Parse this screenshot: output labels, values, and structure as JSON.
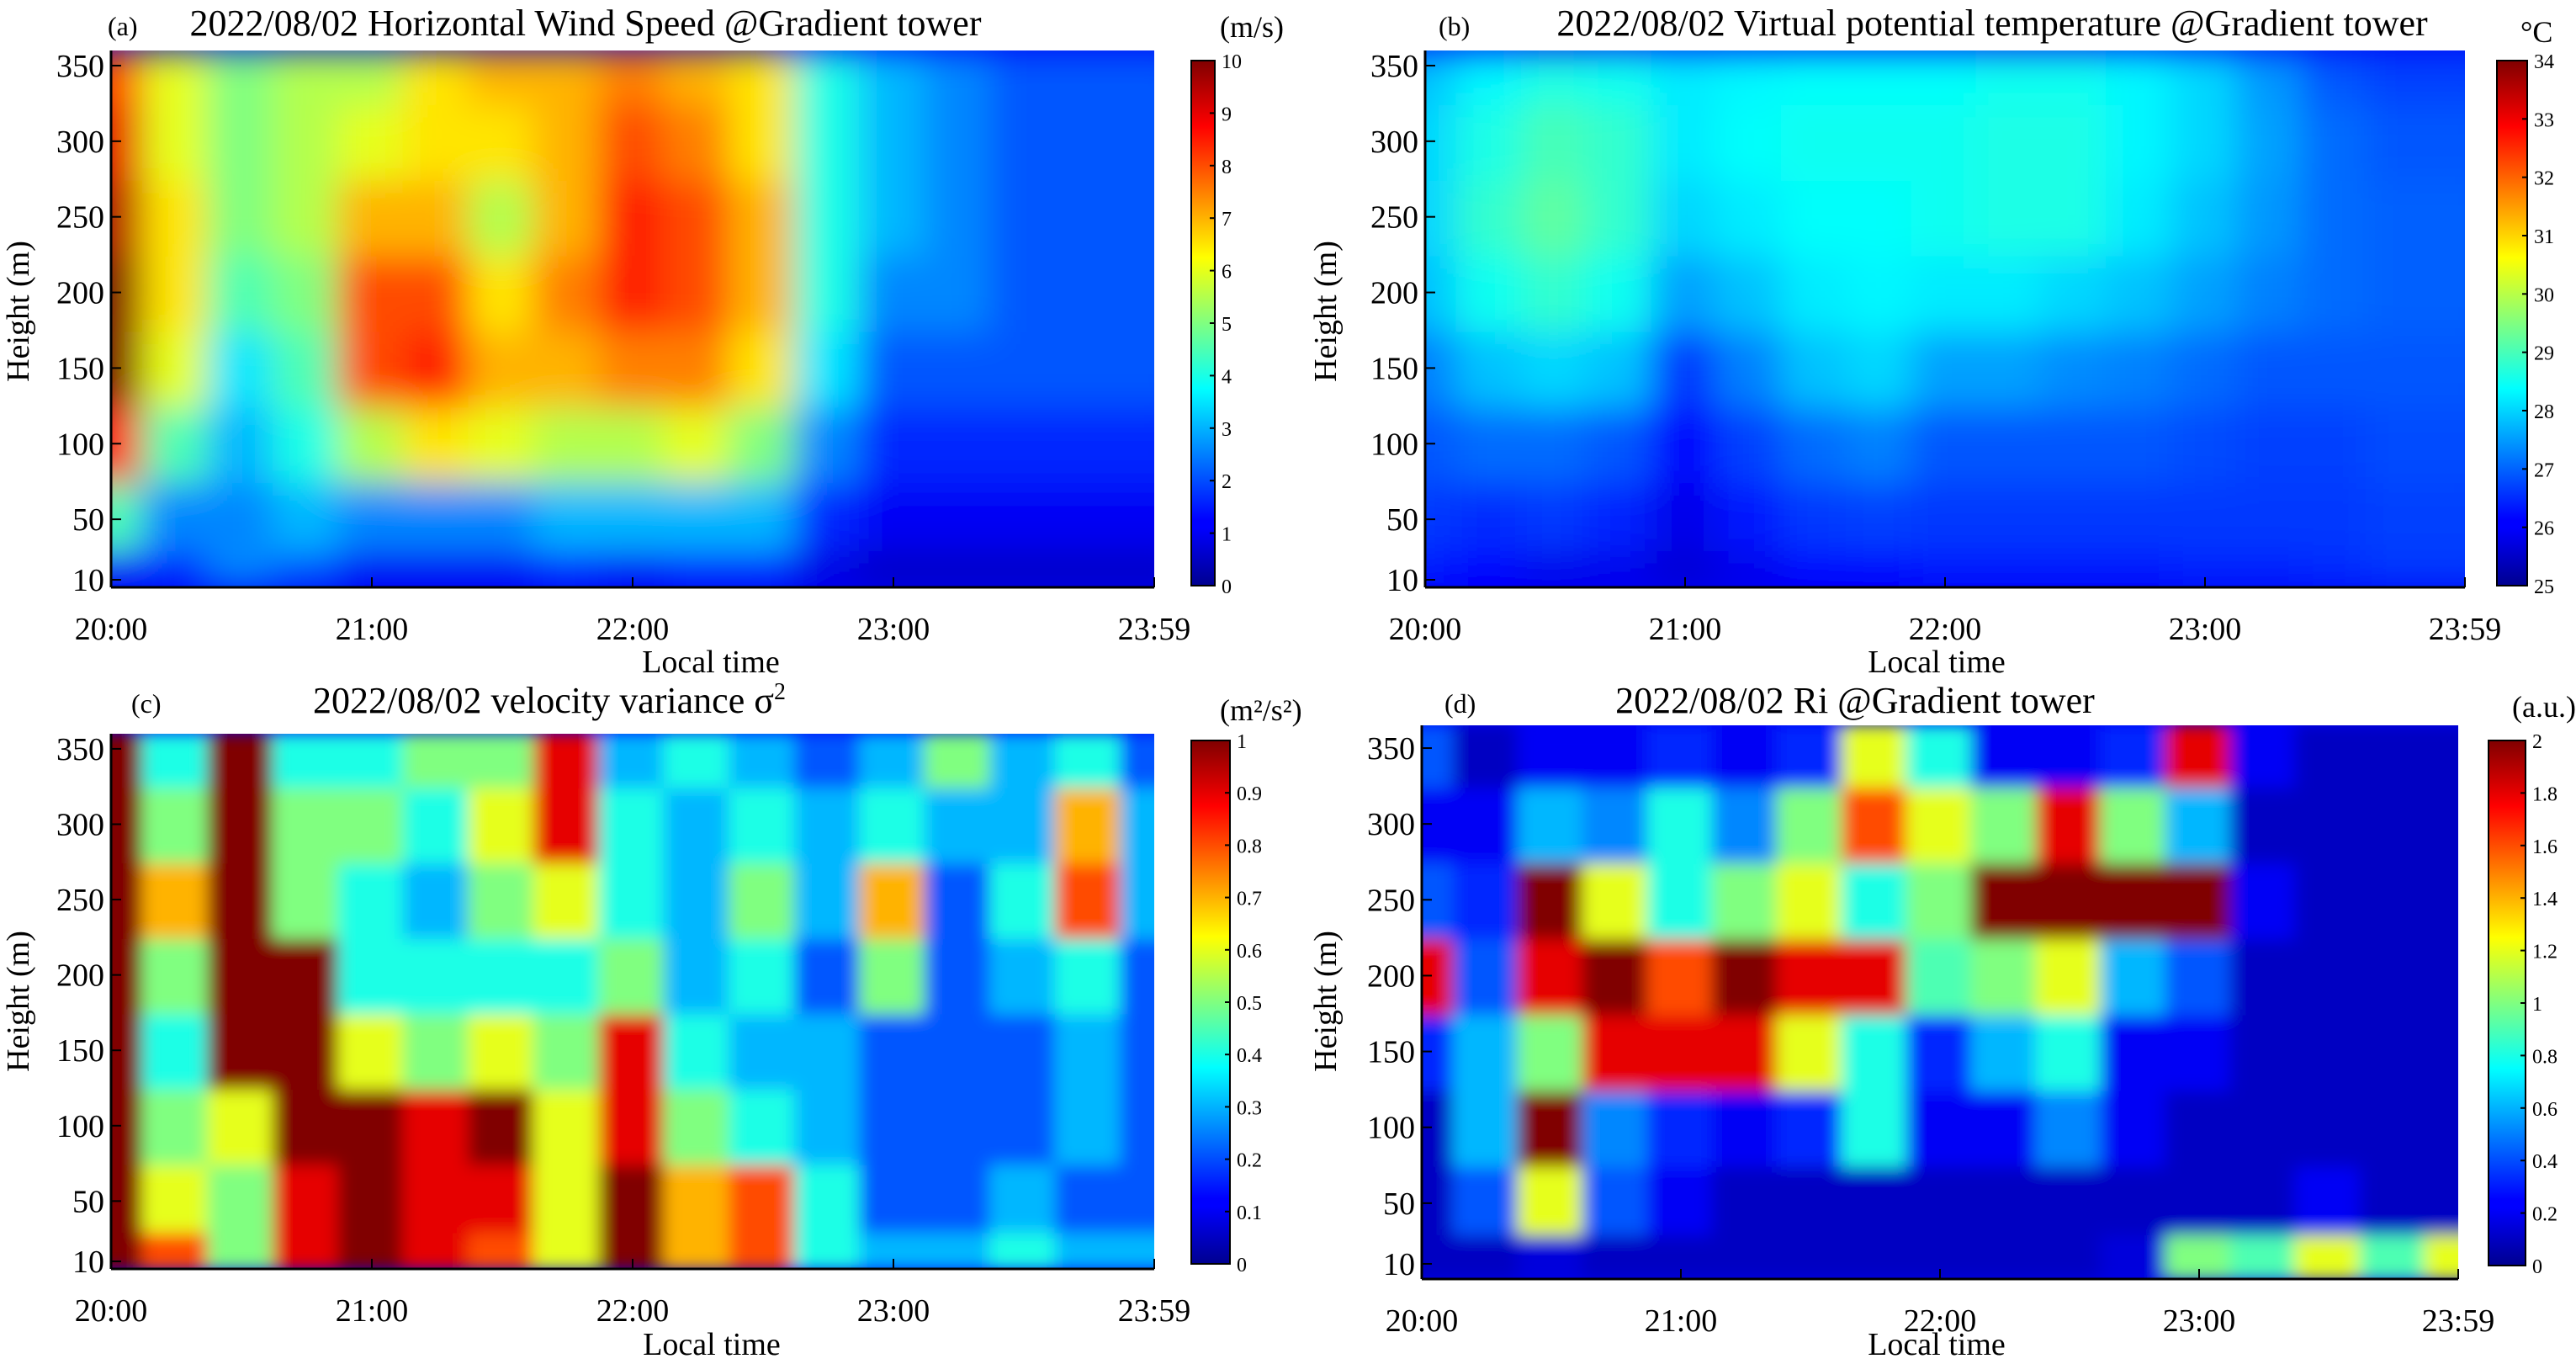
{
  "colormap": "jet",
  "colors": {
    "jet_low": "#00008f",
    "jet_mid": "#80ff80",
    "jet_high": "#800000",
    "axis": "#000000"
  },
  "chart_data": [
    {
      "type": "heatmap",
      "panel": "(a)",
      "title": "2022/08/02 Horizontal Wind Speed @Gradient tower",
      "xlabel": "Local time",
      "ylabel": "Height (m)",
      "xticks": [
        "20:00",
        "21:00",
        "22:00",
        "23:00",
        "23:59"
      ],
      "yticks": [
        "10",
        "50",
        "100",
        "150",
        "200",
        "250",
        "300",
        "350"
      ],
      "ytick_values": [
        10,
        50,
        100,
        150,
        200,
        250,
        300,
        350
      ],
      "ylim": [
        5,
        360
      ],
      "colorbar": {
        "label": "(m/s)",
        "min": 0,
        "max": 10,
        "ticks": [
          "0",
          "1",
          "2",
          "3",
          "4",
          "5",
          "6",
          "7",
          "8",
          "9",
          "10"
        ]
      },
      "heights": [
        10,
        50,
        100,
        150,
        200,
        250,
        300,
        350
      ],
      "times": [
        "20:00",
        "20:15",
        "20:30",
        "20:45",
        "21:00",
        "21:15",
        "21:30",
        "21:45",
        "22:00",
        "22:15",
        "22:30",
        "22:45",
        "23:00",
        "23:15",
        "23:30",
        "23:45",
        "23:59"
      ],
      "values": [
        [
          1.0,
          1.5,
          2.5,
          2.0,
          1.0,
          1.0,
          1.0,
          1.5,
          1.0,
          1.5,
          1.5,
          0.8,
          0.5,
          0.5,
          0.5,
          0.5,
          0.5
        ],
        [
          4.5,
          2.5,
          2.5,
          3.0,
          2.5,
          2.5,
          2.5,
          3.0,
          3.0,
          3.0,
          3.0,
          1.5,
          1.0,
          1.0,
          1.0,
          1.0,
          1.0
        ],
        [
          8.5,
          4.5,
          3.0,
          4.0,
          5.5,
          6.5,
          6.0,
          5.5,
          5.5,
          6.0,
          5.0,
          2.5,
          1.5,
          1.5,
          1.5,
          1.5,
          1.5
        ],
        [
          10.0,
          6.0,
          3.5,
          4.5,
          8.0,
          8.5,
          7.0,
          7.0,
          7.5,
          7.5,
          6.5,
          3.5,
          2.0,
          2.0,
          2.0,
          2.0,
          2.0
        ],
        [
          10.0,
          6.5,
          4.5,
          5.0,
          8.0,
          8.0,
          6.5,
          7.5,
          8.5,
          8.0,
          7.0,
          4.0,
          2.5,
          2.5,
          2.0,
          2.0,
          2.0
        ],
        [
          9.5,
          6.5,
          5.0,
          5.5,
          7.0,
          7.0,
          5.5,
          7.0,
          8.5,
          8.0,
          7.0,
          4.0,
          3.0,
          2.5,
          2.0,
          2.0,
          2.0
        ],
        [
          9.0,
          6.0,
          5.0,
          5.5,
          6.0,
          6.5,
          6.5,
          7.0,
          8.0,
          7.5,
          6.5,
          4.0,
          3.0,
          2.5,
          2.0,
          2.0,
          2.0
        ],
        [
          8.0,
          6.0,
          5.0,
          5.5,
          5.5,
          6.5,
          7.0,
          7.0,
          7.5,
          7.0,
          6.5,
          4.0,
          3.0,
          2.5,
          2.0,
          2.0,
          2.0
        ]
      ]
    },
    {
      "type": "heatmap",
      "panel": "(b)",
      "title": "2022/08/02 Virtual potential temperature @Gradient tower",
      "xlabel": "Local time",
      "ylabel": "Height (m)",
      "xticks": [
        "20:00",
        "21:00",
        "22:00",
        "23:00",
        "23:59"
      ],
      "yticks": [
        "10",
        "50",
        "100",
        "150",
        "200",
        "250",
        "300",
        "350"
      ],
      "ytick_values": [
        10,
        50,
        100,
        150,
        200,
        250,
        300,
        350
      ],
      "ylim": [
        5,
        360
      ],
      "colorbar": {
        "label": "°C",
        "min": 25,
        "max": 34,
        "ticks": [
          "25",
          "26",
          "27",
          "28",
          "29",
          "30",
          "31",
          "32",
          "33",
          "34"
        ]
      },
      "heights": [
        10,
        50,
        100,
        150,
        200,
        250,
        300,
        350
      ],
      "times": [
        "20:00",
        "20:15",
        "20:30",
        "20:45",
        "21:00",
        "21:15",
        "21:30",
        "21:45",
        "22:00",
        "22:15",
        "22:30",
        "22:45",
        "23:00",
        "23:15",
        "23:30",
        "23:45",
        "23:59"
      ],
      "values": [
        [
          26.2,
          26.0,
          25.8,
          25.8,
          25.6,
          25.8,
          26.0,
          26.0,
          26.2,
          26.2,
          26.2,
          26.2,
          26.3,
          26.3,
          26.4,
          26.5,
          26.5
        ],
        [
          26.5,
          26.4,
          26.5,
          26.3,
          25.8,
          26.2,
          26.5,
          26.6,
          26.5,
          26.5,
          26.5,
          26.5,
          26.5,
          26.5,
          26.5,
          26.6,
          26.6
        ],
        [
          26.8,
          27.0,
          27.0,
          26.8,
          26.0,
          26.6,
          27.0,
          27.2,
          26.8,
          26.8,
          26.8,
          26.8,
          26.7,
          26.6,
          26.6,
          26.7,
          26.7
        ],
        [
          27.2,
          27.8,
          28.0,
          27.8,
          26.5,
          27.2,
          27.8,
          28.0,
          27.5,
          27.5,
          27.3,
          27.2,
          27.0,
          26.8,
          26.8,
          26.8,
          26.8
        ],
        [
          27.8,
          28.5,
          28.8,
          28.5,
          27.5,
          27.8,
          28.2,
          28.3,
          28.2,
          28.2,
          28.0,
          27.8,
          27.5,
          27.2,
          27.0,
          26.9,
          26.9
        ],
        [
          28.0,
          28.8,
          29.2,
          28.8,
          28.0,
          28.2,
          28.4,
          28.4,
          28.5,
          28.6,
          28.6,
          28.2,
          27.8,
          27.4,
          27.0,
          26.9,
          26.9
        ],
        [
          28.0,
          28.6,
          29.0,
          28.8,
          28.2,
          28.4,
          28.5,
          28.5,
          28.5,
          28.6,
          28.6,
          28.3,
          28.0,
          27.5,
          27.0,
          26.8,
          26.8
        ],
        [
          27.8,
          28.3,
          28.6,
          28.5,
          28.2,
          28.3,
          28.4,
          28.4,
          28.4,
          28.5,
          28.5,
          28.3,
          28.0,
          27.4,
          26.8,
          26.6,
          26.6
        ]
      ]
    },
    {
      "type": "heatmap",
      "panel": "(c)",
      "title": "2022/08/02 velocity variance σ",
      "title_superscript": "2",
      "xlabel": "Local time",
      "ylabel": "Height (m)",
      "xticks": [
        "20:00",
        "21:00",
        "22:00",
        "23:00",
        "23:59"
      ],
      "yticks": [
        "10",
        "50",
        "100",
        "150",
        "200",
        "250",
        "300",
        "350"
      ],
      "ytick_values": [
        10,
        50,
        100,
        150,
        200,
        250,
        300,
        350
      ],
      "ylim": [
        5,
        360
      ],
      "colorbar": {
        "label": "(m²/s²)",
        "min": 0,
        "max": 1,
        "ticks": [
          "0",
          "0.1",
          "0.2",
          "0.3",
          "0.4",
          "0.5",
          "0.6",
          "0.7",
          "0.8",
          "0.9",
          "1"
        ]
      },
      "heights": [
        10,
        50,
        100,
        150,
        200,
        250,
        300,
        350
      ],
      "times": [
        "20:00",
        "20:15",
        "20:30",
        "20:45",
        "21:00",
        "21:15",
        "21:30",
        "21:45",
        "22:00",
        "22:15",
        "22:30",
        "22:45",
        "23:00",
        "23:15",
        "23:30",
        "23:45",
        "23:59"
      ],
      "values": [
        [
          1.0,
          0.8,
          0.5,
          0.9,
          1.0,
          0.9,
          0.8,
          0.6,
          1.0,
          0.7,
          0.8,
          0.4,
          0.3,
          0.3,
          0.4,
          0.3,
          0.3
        ],
        [
          1.0,
          0.6,
          0.5,
          0.9,
          1.0,
          0.9,
          0.9,
          0.6,
          1.0,
          0.7,
          0.8,
          0.4,
          0.2,
          0.2,
          0.3,
          0.2,
          0.2
        ],
        [
          1.0,
          0.5,
          0.6,
          1.0,
          1.0,
          0.9,
          1.0,
          0.6,
          0.9,
          0.5,
          0.4,
          0.3,
          0.2,
          0.2,
          0.2,
          0.3,
          0.2
        ],
        [
          1.0,
          0.4,
          1.0,
          1.0,
          0.6,
          0.5,
          0.6,
          0.5,
          0.9,
          0.4,
          0.3,
          0.3,
          0.2,
          0.2,
          0.2,
          0.3,
          0.2
        ],
        [
          1.0,
          0.5,
          1.0,
          1.0,
          0.4,
          0.4,
          0.4,
          0.4,
          0.5,
          0.3,
          0.4,
          0.2,
          0.5,
          0.2,
          0.3,
          0.4,
          0.2
        ],
        [
          1.0,
          0.7,
          1.0,
          0.5,
          0.4,
          0.3,
          0.5,
          0.6,
          0.4,
          0.3,
          0.5,
          0.3,
          0.7,
          0.2,
          0.4,
          0.8,
          0.3
        ],
        [
          1.0,
          0.5,
          1.0,
          0.5,
          0.5,
          0.4,
          0.6,
          0.9,
          0.4,
          0.3,
          0.4,
          0.3,
          0.4,
          0.3,
          0.3,
          0.7,
          0.3
        ],
        [
          1.0,
          0.4,
          1.0,
          0.4,
          0.4,
          0.5,
          0.5,
          0.9,
          0.3,
          0.4,
          0.3,
          0.2,
          0.3,
          0.5,
          0.3,
          0.4,
          0.2
        ]
      ]
    },
    {
      "type": "heatmap",
      "panel": "(d)",
      "title": "2022/08/02 Ri  @Gradient tower",
      "xlabel": "Local time",
      "ylabel": "Height (m)",
      "xticks": [
        "20:00",
        "21:00",
        "22:00",
        "23:00",
        "23:59"
      ],
      "yticks": [
        "10",
        "50",
        "100",
        "150",
        "200",
        "250",
        "300",
        "350"
      ],
      "ytick_values": [
        10,
        50,
        100,
        150,
        200,
        250,
        300,
        350
      ],
      "ylim": [
        0,
        365
      ],
      "colorbar": {
        "label": "(a.u.)",
        "min": 0,
        "max": 2,
        "ticks": [
          "0",
          "0.2",
          "0.4",
          "0.6",
          "0.8",
          "1",
          "1.2",
          "1.4",
          "1.6",
          "1.8",
          "2"
        ]
      },
      "heights": [
        10,
        50,
        100,
        150,
        200,
        250,
        300,
        350
      ],
      "times": [
        "20:00",
        "20:15",
        "20:30",
        "20:45",
        "21:00",
        "21:15",
        "21:30",
        "21:45",
        "22:00",
        "22:15",
        "22:30",
        "22:45",
        "23:00",
        "23:15",
        "23:30",
        "23:45",
        "23:59"
      ],
      "values": [
        [
          0.1,
          0.1,
          0.15,
          0.1,
          0.1,
          0.1,
          0.1,
          0.1,
          0.1,
          0.1,
          0.1,
          0.15,
          1.0,
          0.9,
          1.2,
          0.9,
          1.2
        ],
        [
          0.1,
          0.4,
          1.2,
          0.4,
          0.2,
          0.1,
          0.1,
          0.1,
          0.1,
          0.1,
          0.1,
          0.1,
          0.1,
          0.1,
          0.2,
          0.1,
          0.1
        ],
        [
          0.1,
          0.6,
          2.0,
          0.5,
          0.3,
          0.2,
          0.3,
          0.8,
          0.2,
          0.2,
          0.5,
          0.2,
          0.1,
          0.1,
          0.1,
          0.1,
          0.1
        ],
        [
          0.3,
          0.6,
          1.0,
          1.8,
          1.8,
          1.8,
          1.2,
          0.8,
          0.3,
          0.6,
          0.8,
          0.2,
          0.2,
          0.1,
          0.1,
          0.1,
          0.1
        ],
        [
          1.8,
          0.4,
          1.8,
          2.0,
          1.6,
          2.0,
          1.8,
          1.8,
          0.9,
          1.0,
          1.2,
          0.6,
          0.4,
          0.1,
          0.1,
          0.1,
          0.1
        ],
        [
          0.4,
          0.3,
          2.0,
          1.2,
          0.8,
          1.0,
          1.2,
          0.8,
          1.0,
          2.0,
          2.0,
          2.0,
          2.0,
          0.2,
          0.1,
          0.1,
          0.1
        ],
        [
          0.2,
          0.2,
          0.6,
          0.5,
          0.8,
          0.5,
          1.0,
          1.6,
          1.2,
          1.0,
          1.8,
          1.0,
          0.6,
          0.1,
          0.1,
          0.1,
          0.1
        ],
        [
          0.4,
          0.1,
          0.2,
          0.2,
          0.3,
          0.2,
          0.3,
          1.2,
          0.8,
          0.2,
          0.2,
          0.3,
          1.8,
          0.2,
          0.1,
          0.1,
          0.1
        ]
      ]
    }
  ]
}
